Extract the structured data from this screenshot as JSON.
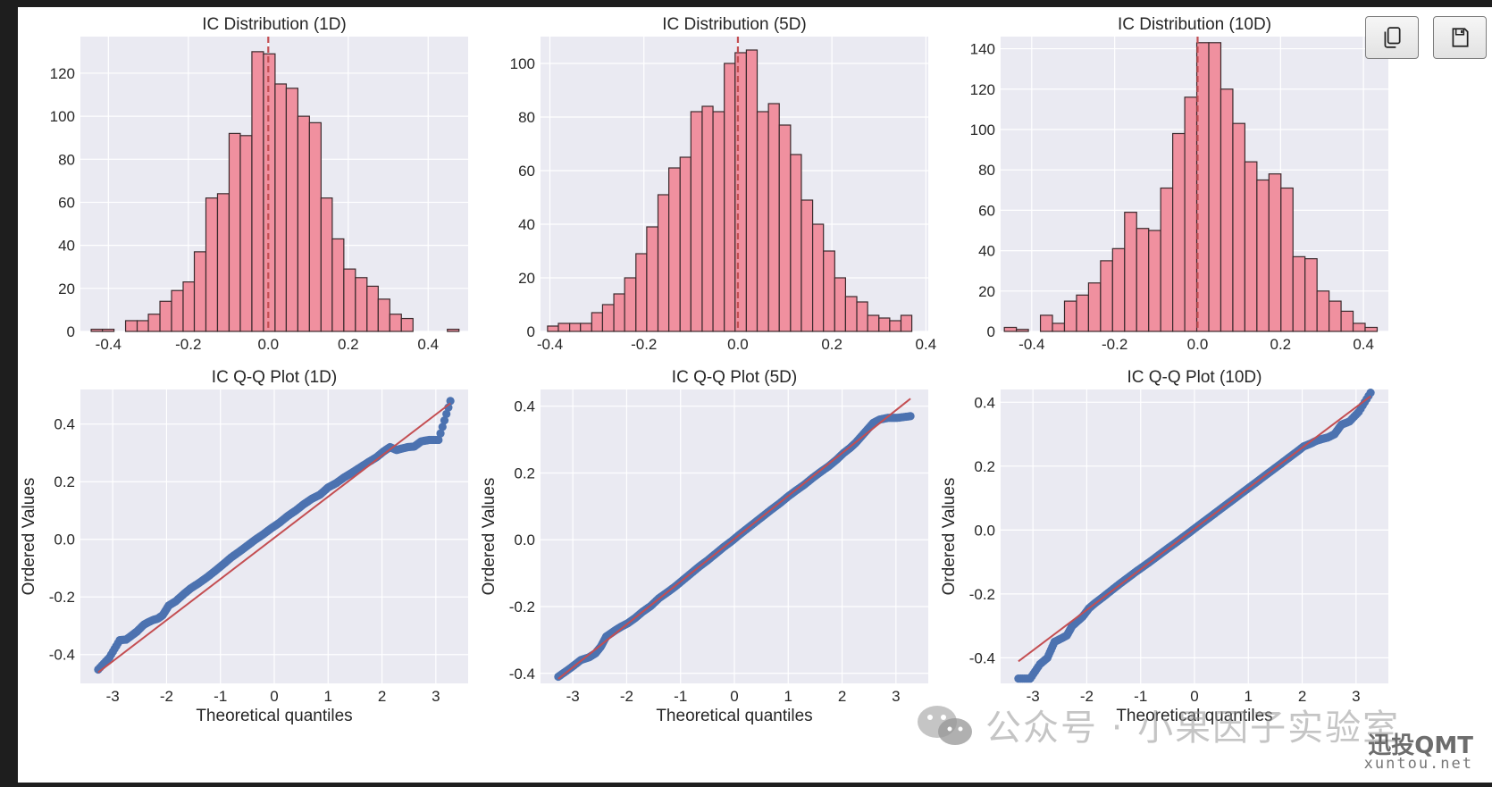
{
  "colors": {
    "page_bg": "#1e1e1e",
    "figure_bg": "#ffffff",
    "axes_bg": "#eaeaf2",
    "grid": "#ffffff",
    "hist_fill": "#f0909f",
    "hist_edge": "#3b2a2d",
    "mean_line": "#c44e52",
    "qq_points": "#4c72b0",
    "qq_line": "#c44e52",
    "text": "#262626"
  },
  "toolbar": {
    "copy_icon": "copy-icon",
    "save_icon": "save-icon"
  },
  "watermark": {
    "channel": "公众号 · 小果因子实验室",
    "brand": "迅投QMT",
    "site": "xuntou.net"
  },
  "chart_data": [
    {
      "type": "bar",
      "title": "IC Distribution (1D)",
      "xlabel": "",
      "ylabel": "",
      "xlim": [
        -0.47,
        0.5
      ],
      "ylim": [
        0,
        137
      ],
      "xticks": [
        -0.4,
        -0.2,
        0.0,
        0.2,
        0.4
      ],
      "yticks": [
        0,
        20,
        40,
        60,
        80,
        100,
        120
      ],
      "xtick_labels": [
        "-0.4",
        "-0.2",
        "0.0",
        "0.2",
        "0.4"
      ],
      "ytick_labels": [
        "0",
        "20",
        "40",
        "60",
        "80",
        "100",
        "120"
      ],
      "grid": true,
      "mean_line_x": 0.0,
      "bin_edges": [
        -0.443,
        -0.415,
        -0.386,
        -0.357,
        -0.328,
        -0.3,
        -0.271,
        -0.242,
        -0.213,
        -0.185,
        -0.156,
        -0.127,
        -0.098,
        -0.07,
        -0.041,
        -0.012,
        0.017,
        0.045,
        0.074,
        0.103,
        0.132,
        0.16,
        0.189,
        0.218,
        0.247,
        0.275,
        0.304,
        0.333,
        0.362,
        0.39,
        0.419,
        0.448,
        0.477
      ],
      "values": [
        1,
        1,
        0,
        5,
        5,
        8,
        14,
        19,
        23,
        37,
        62,
        64,
        92,
        91,
        130,
        129,
        115,
        113,
        100,
        97,
        62,
        43,
        29,
        25,
        21,
        15,
        8,
        6,
        0,
        0,
        0,
        1
      ]
    },
    {
      "type": "bar",
      "title": "IC Distribution (5D)",
      "xlabel": "",
      "ylabel": "",
      "xlim": [
        -0.42,
        0.405
      ],
      "ylim": [
        0,
        110
      ],
      "xticks": [
        -0.4,
        -0.2,
        0.0,
        0.2,
        0.4
      ],
      "yticks": [
        0,
        20,
        40,
        60,
        80,
        100
      ],
      "xtick_labels": [
        "-0.4",
        "-0.2",
        "0.0",
        "0.2",
        "0.4"
      ],
      "ytick_labels": [
        "0",
        "20",
        "40",
        "60",
        "80",
        "100"
      ],
      "grid": true,
      "mean_line_x": 0.0,
      "bin_edges": [
        -0.405,
        -0.382,
        -0.358,
        -0.335,
        -0.311,
        -0.288,
        -0.264,
        -0.241,
        -0.217,
        -0.194,
        -0.17,
        -0.147,
        -0.123,
        -0.1,
        -0.076,
        -0.053,
        -0.029,
        -0.006,
        0.018,
        0.041,
        0.065,
        0.088,
        0.112,
        0.135,
        0.159,
        0.182,
        0.206,
        0.229,
        0.253,
        0.276,
        0.3,
        0.323,
        0.347,
        0.37
      ],
      "values": [
        2,
        3,
        3,
        3,
        7,
        10,
        14,
        20,
        29,
        39,
        51,
        61,
        65,
        82,
        84,
        82,
        100,
        104,
        105,
        82,
        85,
        77,
        66,
        49,
        40,
        30,
        20,
        13,
        11,
        6,
        5,
        4,
        6
      ]
    },
    {
      "type": "bar",
      "title": "IC Distribution (10D)",
      "xlabel": "",
      "ylabel": "",
      "xlim": [
        -0.475,
        0.46
      ],
      "ylim": [
        0,
        146
      ],
      "xticks": [
        -0.4,
        -0.2,
        0.0,
        0.2,
        0.4
      ],
      "yticks": [
        0,
        20,
        40,
        60,
        80,
        100,
        120,
        140
      ],
      "xtick_labels": [
        "-0.4",
        "-0.2",
        "0.0",
        "0.2",
        "0.4"
      ],
      "ytick_labels": [
        "0",
        "20",
        "40",
        "60",
        "80",
        "100",
        "120",
        "140"
      ],
      "grid": true,
      "mean_line_x": 0.0,
      "bin_edges": [
        -0.466,
        -0.437,
        -0.408,
        -0.379,
        -0.35,
        -0.321,
        -0.292,
        -0.263,
        -0.234,
        -0.205,
        -0.176,
        -0.147,
        -0.118,
        -0.089,
        -0.06,
        -0.031,
        -0.002,
        0.027,
        0.056,
        0.085,
        0.114,
        0.143,
        0.172,
        0.201,
        0.23,
        0.259,
        0.288,
        0.317,
        0.346,
        0.375,
        0.404,
        0.433
      ],
      "values": [
        2,
        1,
        0,
        8,
        4,
        15,
        18,
        24,
        35,
        41,
        59,
        51,
        50,
        71,
        98,
        116,
        143,
        143,
        120,
        103,
        84,
        75,
        78,
        71,
        37,
        36,
        20,
        15,
        10,
        4,
        2
      ]
    },
    {
      "type": "scatter",
      "title": "IC Q-Q Plot (1D)",
      "xlabel": "Theoretical quantiles",
      "ylabel": "Ordered Values",
      "xlim": [
        -3.6,
        3.6
      ],
      "ylim": [
        -0.5,
        0.52
      ],
      "xticks": [
        -3,
        -2,
        -1,
        0,
        1,
        2,
        3
      ],
      "yticks": [
        -0.4,
        -0.2,
        0.0,
        0.2,
        0.4
      ],
      "xtick_labels": [
        "-3",
        "-2",
        "-1",
        "0",
        "1",
        "2",
        "3"
      ],
      "ytick_labels": [
        "-0.4",
        "-0.2",
        "0.0",
        "0.2",
        "0.4"
      ],
      "grid": true,
      "fit_line": {
        "slope": 0.1428,
        "intercept": 0.005,
        "x_range": [
          -3.27,
          3.27
        ]
      },
      "x": [
        -3.27,
        -3.06,
        -2.87,
        -2.75,
        -2.62,
        -2.55,
        -2.42,
        -2.33,
        -2.25,
        -2.16,
        -2.07,
        -1.96,
        -1.83,
        -1.68,
        -1.55,
        -1.4,
        -1.25,
        -1.1,
        -0.95,
        -0.8,
        -0.65,
        -0.5,
        -0.35,
        -0.2,
        -0.05,
        0.1,
        0.25,
        0.4,
        0.55,
        0.7,
        0.85,
        1.0,
        1.15,
        1.3,
        1.45,
        1.6,
        1.75,
        1.9,
        2.03,
        2.15,
        2.27,
        2.37,
        2.48,
        2.6,
        2.73,
        2.88,
        3.05,
        3.27
      ],
      "y": [
        -0.452,
        -0.41,
        -0.35,
        -0.348,
        -0.33,
        -0.32,
        -0.296,
        -0.287,
        -0.28,
        -0.275,
        -0.263,
        -0.23,
        -0.215,
        -0.19,
        -0.17,
        -0.152,
        -0.132,
        -0.11,
        -0.087,
        -0.063,
        -0.043,
        -0.022,
        -0.001,
        0.018,
        0.039,
        0.058,
        0.081,
        0.1,
        0.122,
        0.141,
        0.155,
        0.18,
        0.195,
        0.215,
        0.232,
        0.25,
        0.268,
        0.285,
        0.305,
        0.32,
        0.31,
        0.315,
        0.32,
        0.322,
        0.34,
        0.345,
        0.345,
        0.48
      ]
    },
    {
      "type": "scatter",
      "title": "IC Q-Q Plot (5D)",
      "xlabel": "Theoretical quantiles",
      "ylabel": "Ordered Values",
      "xlim": [
        -3.6,
        3.6
      ],
      "ylim": [
        -0.43,
        0.45
      ],
      "xticks": [
        -3,
        -2,
        -1,
        0,
        1,
        2,
        3
      ],
      "yticks": [
        -0.4,
        -0.2,
        0.0,
        0.2,
        0.4
      ],
      "xtick_labels": [
        "-3",
        "-2",
        "-1",
        "0",
        "1",
        "2",
        "3"
      ],
      "ytick_labels": [
        "-0.4",
        "-0.2",
        "0.0",
        "0.2",
        "0.4"
      ],
      "grid": true,
      "fit_line": {
        "slope": 0.1283,
        "intercept": 0.003,
        "x_range": [
          -3.27,
          3.27
        ]
      },
      "x": [
        -3.27,
        -3.05,
        -2.85,
        -2.7,
        -2.58,
        -2.48,
        -2.38,
        -2.29,
        -2.2,
        -2.1,
        -1.98,
        -1.84,
        -1.7,
        -1.55,
        -1.4,
        -1.25,
        -1.1,
        -0.95,
        -0.8,
        -0.65,
        -0.5,
        -0.35,
        -0.2,
        -0.05,
        0.1,
        0.25,
        0.4,
        0.55,
        0.7,
        0.85,
        1.0,
        1.15,
        1.3,
        1.45,
        1.6,
        1.75,
        1.9,
        2.03,
        2.15,
        2.25,
        2.36,
        2.47,
        2.58,
        2.7,
        2.85,
        3.02,
        3.27
      ],
      "y": [
        -0.41,
        -0.385,
        -0.36,
        -0.352,
        -0.34,
        -0.32,
        -0.29,
        -0.28,
        -0.27,
        -0.26,
        -0.25,
        -0.234,
        -0.215,
        -0.198,
        -0.175,
        -0.158,
        -0.14,
        -0.12,
        -0.1,
        -0.08,
        -0.062,
        -0.042,
        -0.022,
        -0.004,
        0.016,
        0.035,
        0.054,
        0.073,
        0.092,
        0.11,
        0.13,
        0.148,
        0.165,
        0.185,
        0.203,
        0.22,
        0.24,
        0.26,
        0.275,
        0.29,
        0.31,
        0.33,
        0.35,
        0.36,
        0.365,
        0.365,
        0.37
      ]
    },
    {
      "type": "scatter",
      "title": "IC Q-Q Plot (10D)",
      "xlabel": "Theoretical quantiles",
      "ylabel": "Ordered Values",
      "xlim": [
        -3.6,
        3.6
      ],
      "ylim": [
        -0.48,
        0.44
      ],
      "xticks": [
        -3,
        -2,
        -1,
        0,
        1,
        2,
        3
      ],
      "yticks": [
        -0.4,
        -0.2,
        0.0,
        0.2,
        0.4
      ],
      "xtick_labels": [
        "-3",
        "-2",
        "-1",
        "0",
        "1",
        "2",
        "3"
      ],
      "ytick_labels": [
        "-0.4",
        "-0.2",
        "0.0",
        "0.2",
        "0.4"
      ],
      "grid": true,
      "fit_line": {
        "slope": 0.1269,
        "intercept": 0.004,
        "x_range": [
          -3.27,
          3.27
        ]
      },
      "x": [
        -3.27,
        -3.05,
        -2.87,
        -2.73,
        -2.6,
        -2.48,
        -2.37,
        -2.27,
        -2.17,
        -2.07,
        -1.96,
        -1.84,
        -1.7,
        -1.55,
        -1.4,
        -1.25,
        -1.1,
        -0.95,
        -0.8,
        -0.65,
        -0.5,
        -0.35,
        -0.2,
        -0.05,
        0.1,
        0.25,
        0.4,
        0.55,
        0.7,
        0.85,
        1.0,
        1.15,
        1.3,
        1.45,
        1.6,
        1.75,
        1.9,
        2.03,
        2.15,
        2.27,
        2.37,
        2.48,
        2.6,
        2.73,
        2.88,
        3.05,
        3.27
      ],
      "y": [
        -0.465,
        -0.465,
        -0.42,
        -0.4,
        -0.35,
        -0.34,
        -0.33,
        -0.3,
        -0.285,
        -0.27,
        -0.245,
        -0.228,
        -0.21,
        -0.19,
        -0.17,
        -0.151,
        -0.132,
        -0.114,
        -0.096,
        -0.077,
        -0.058,
        -0.04,
        -0.021,
        -0.002,
        0.017,
        0.036,
        0.055,
        0.074,
        0.093,
        0.112,
        0.131,
        0.15,
        0.169,
        0.188,
        0.207,
        0.226,
        0.245,
        0.262,
        0.27,
        0.28,
        0.285,
        0.29,
        0.3,
        0.33,
        0.34,
        0.37,
        0.43
      ]
    }
  ]
}
